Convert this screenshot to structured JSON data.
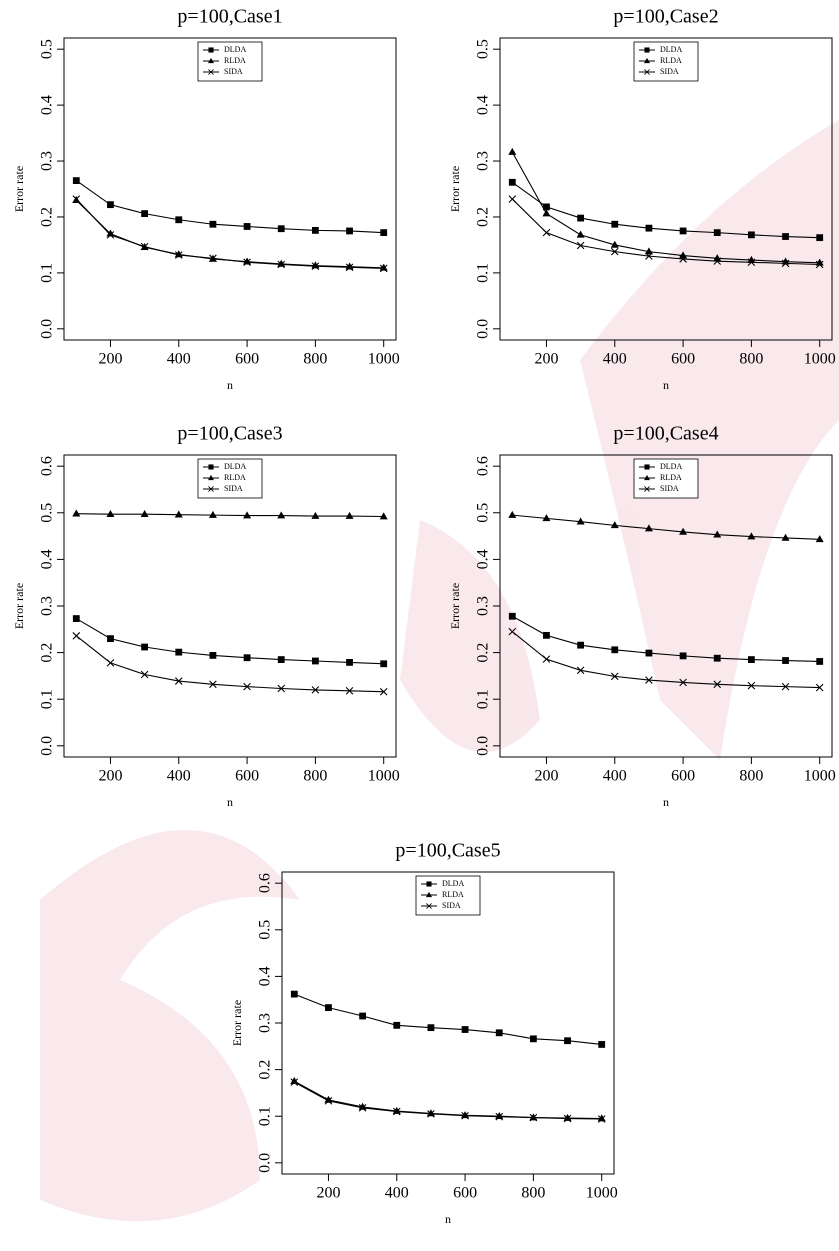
{
  "chart_data": [
    {
      "type": "line",
      "title": "p=100,Case1",
      "x_label": "n",
      "y_label": "Error rate",
      "x": [
        100,
        200,
        300,
        400,
        500,
        600,
        700,
        800,
        900,
        1000
      ],
      "xlim": [
        64,
        1036
      ],
      "xticks": [
        200,
        400,
        600,
        800,
        1000
      ],
      "ylim": [
        -0.02,
        0.52
      ],
      "yticks": [
        {
          "value": 0,
          "label": "0.0"
        },
        0.1,
        0.2,
        0.3,
        0.4,
        0.5
      ],
      "legend": "top",
      "series": [
        {
          "name": "DLDA",
          "color": "#000000",
          "marker": "square",
          "values": [
            0.265,
            0.222,
            0.206,
            0.195,
            0.187,
            0.183,
            0.179,
            0.176,
            0.175,
            0.172
          ]
        },
        {
          "name": "RLDA",
          "color": "#000000",
          "marker": "triangle",
          "values": [
            0.23,
            0.17,
            0.146,
            0.133,
            0.125,
            0.12,
            0.116,
            0.113,
            0.111,
            0.109
          ]
        },
        {
          "name": "SIDA",
          "color": "#000000",
          "marker": "cross",
          "values": [
            0.232,
            0.168,
            0.147,
            0.132,
            0.126,
            0.119,
            0.115,
            0.112,
            0.11,
            0.108
          ]
        }
      ]
    },
    {
      "type": "line",
      "title": "p=100,Case2",
      "x_label": "n",
      "y_label": "Error rate",
      "x": [
        100,
        200,
        300,
        400,
        500,
        600,
        700,
        800,
        900,
        1000
      ],
      "xlim": [
        64,
        1036
      ],
      "xticks": [
        200,
        400,
        600,
        800,
        1000
      ],
      "ylim": [
        -0.02,
        0.52
      ],
      "yticks": [
        {
          "value": 0,
          "label": "0.0"
        },
        0.1,
        0.2,
        0.3,
        0.4,
        0.5
      ],
      "legend": "top",
      "series": [
        {
          "name": "DLDA",
          "color": "#000000",
          "marker": "square",
          "values": [
            0.262,
            0.218,
            0.198,
            0.187,
            0.18,
            0.175,
            0.172,
            0.168,
            0.165,
            0.163
          ]
        },
        {
          "name": "RLDA",
          "color": "#000000",
          "marker": "triangle",
          "values": [
            0.316,
            0.206,
            0.168,
            0.15,
            0.138,
            0.131,
            0.126,
            0.123,
            0.12,
            0.118
          ]
        },
        {
          "name": "SIDA",
          "color": "#000000",
          "marker": "cross",
          "values": [
            0.232,
            0.172,
            0.149,
            0.138,
            0.13,
            0.125,
            0.121,
            0.119,
            0.117,
            0.115
          ]
        }
      ]
    },
    {
      "type": "line",
      "title": "p=100,Case3",
      "x_label": "n",
      "y_label": "Error rate",
      "x": [
        100,
        200,
        300,
        400,
        500,
        600,
        700,
        800,
        900,
        1000
      ],
      "xlim": [
        64,
        1036
      ],
      "xticks": [
        200,
        400,
        600,
        800,
        1000
      ],
      "ylim": [
        -0.024,
        0.624
      ],
      "yticks": [
        {
          "value": 0,
          "label": "0.0"
        },
        0.1,
        0.2,
        0.3,
        0.4,
        0.5,
        0.6
      ],
      "legend": "top",
      "series": [
        {
          "name": "DLDA",
          "color": "#000000",
          "marker": "square",
          "values": [
            0.273,
            0.23,
            0.212,
            0.201,
            0.194,
            0.189,
            0.185,
            0.182,
            0.179,
            0.176
          ]
        },
        {
          "name": "RLDA",
          "color": "#000000",
          "marker": "triangle",
          "values": [
            0.498,
            0.497,
            0.497,
            0.496,
            0.495,
            0.494,
            0.494,
            0.493,
            0.493,
            0.492
          ]
        },
        {
          "name": "SIDA",
          "color": "#000000",
          "marker": "cross",
          "values": [
            0.236,
            0.178,
            0.153,
            0.139,
            0.132,
            0.127,
            0.123,
            0.12,
            0.118,
            0.116
          ]
        }
      ]
    },
    {
      "type": "line",
      "title": "p=100,Case4",
      "x_label": "n",
      "y_label": "Error rate",
      "x": [
        100,
        200,
        300,
        400,
        500,
        600,
        700,
        800,
        900,
        1000
      ],
      "xlim": [
        64,
        1036
      ],
      "xticks": [
        200,
        400,
        600,
        800,
        1000
      ],
      "ylim": [
        -0.024,
        0.624
      ],
      "yticks": [
        {
          "value": 0,
          "label": "0.0"
        },
        0.1,
        0.2,
        0.3,
        0.4,
        0.5,
        0.6
      ],
      "legend": "top",
      "series": [
        {
          "name": "DLDA",
          "color": "#000000",
          "marker": "square",
          "values": [
            0.278,
            0.237,
            0.216,
            0.206,
            0.199,
            0.193,
            0.188,
            0.185,
            0.183,
            0.181
          ]
        },
        {
          "name": "RLDA",
          "color": "#000000",
          "marker": "triangle",
          "values": [
            0.495,
            0.488,
            0.481,
            0.473,
            0.466,
            0.459,
            0.453,
            0.449,
            0.446,
            0.443
          ]
        },
        {
          "name": "SIDA",
          "color": "#000000",
          "marker": "cross",
          "values": [
            0.245,
            0.186,
            0.162,
            0.149,
            0.141,
            0.136,
            0.132,
            0.129,
            0.127,
            0.125
          ]
        }
      ]
    },
    {
      "type": "line",
      "title": "p=100,Case5",
      "x_label": "n",
      "y_label": "Error rate",
      "x": [
        100,
        200,
        300,
        400,
        500,
        600,
        700,
        800,
        900,
        1000
      ],
      "xlim": [
        64,
        1036
      ],
      "xticks": [
        200,
        400,
        600,
        800,
        1000
      ],
      "ylim": [
        -0.024,
        0.624
      ],
      "yticks": [
        {
          "value": 0,
          "label": "0.0"
        },
        0.1,
        0.2,
        0.3,
        0.4,
        0.5,
        0.6
      ],
      "legend": "top",
      "series": [
        {
          "name": "DLDA",
          "color": "#000000",
          "marker": "square",
          "values": [
            0.362,
            0.333,
            0.315,
            0.295,
            0.29,
            0.286,
            0.279,
            0.266,
            0.262,
            0.254
          ]
        },
        {
          "name": "RLDA",
          "color": "#000000",
          "marker": "triangle",
          "values": [
            0.175,
            0.135,
            0.12,
            0.111,
            0.106,
            0.102,
            0.1,
            0.097,
            0.096,
            0.095
          ]
        },
        {
          "name": "SIDA",
          "color": "#000000",
          "marker": "cross",
          "values": [
            0.173,
            0.133,
            0.118,
            0.11,
            0.105,
            0.101,
            0.099,
            0.097,
            0.095,
            0.094
          ]
        }
      ]
    }
  ]
}
